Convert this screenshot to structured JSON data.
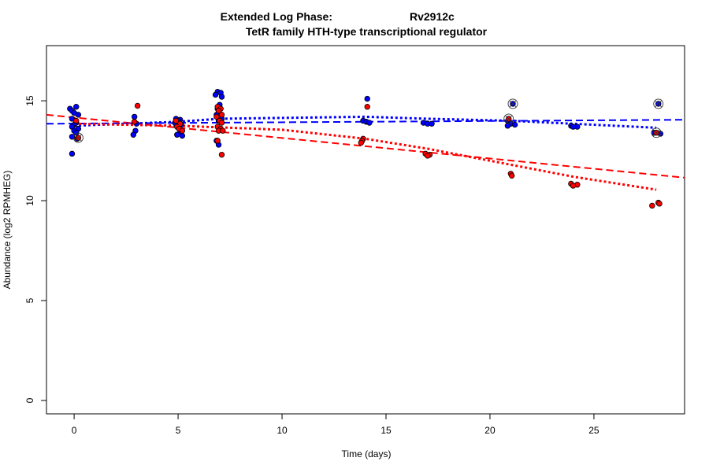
{
  "chart_data": {
    "type": "scatter",
    "title_line1_left": "Extended Log Phase:",
    "title_line1_right": "Rv2912c",
    "title_line2": "TetR family HTH-type transcriptional regulator",
    "xlabel": "Time  (days)",
    "ylabel": "Abundance  (log2 RPMHEG)",
    "xlim": [
      -1.33,
      29.36
    ],
    "ylim": [
      -0.67,
      17.76
    ],
    "xticks": [
      0,
      5,
      10,
      15,
      20,
      25
    ],
    "yticks": [
      0,
      5,
      10,
      15
    ],
    "grid": false,
    "colors": {
      "blue": "#0000ff",
      "red": "#ff0000"
    },
    "series": [
      {
        "color": "blue",
        "points": [
          [
            -0.2,
            14.6
          ],
          [
            -0.1,
            14.5
          ],
          [
            0.1,
            14.7
          ],
          [
            0,
            14.4
          ],
          [
            0.2,
            14.3
          ],
          [
            -0.1,
            14.1
          ],
          [
            0.1,
            13.9
          ],
          [
            0,
            13.8
          ],
          [
            -0.1,
            13.7
          ],
          [
            0.2,
            13.6
          ],
          [
            0,
            13.5
          ],
          [
            0.1,
            13.4
          ],
          [
            -0.1,
            13.2
          ],
          [
            0.15,
            13.1
          ],
          [
            -0.1,
            12.35
          ],
          [
            2.9,
            14.2
          ],
          [
            3,
            13.85
          ],
          [
            2.95,
            13.5
          ],
          [
            2.85,
            13.3
          ],
          [
            4.9,
            14.1
          ],
          [
            5.1,
            14.05
          ],
          [
            5,
            14.0
          ],
          [
            4.85,
            13.9
          ],
          [
            5.15,
            13.8
          ],
          [
            5.05,
            13.6
          ],
          [
            5.1,
            13.4
          ],
          [
            4.95,
            13.3
          ],
          [
            5.2,
            13.25
          ],
          [
            6.9,
            15.45
          ],
          [
            7.05,
            15.4
          ],
          [
            6.8,
            15.3
          ],
          [
            7.1,
            15.2
          ],
          [
            7,
            14.8
          ],
          [
            6.9,
            14.6
          ],
          [
            6.85,
            14.3
          ],
          [
            7.1,
            14.1
          ],
          [
            6.95,
            14.0
          ],
          [
            6.85,
            13.0
          ],
          [
            6.95,
            12.8
          ],
          [
            14.1,
            15.1
          ],
          [
            13.9,
            14.0
          ],
          [
            14.05,
            13.95
          ],
          [
            14.2,
            13.9
          ],
          [
            16.8,
            13.9
          ],
          [
            17,
            13.85
          ],
          [
            17.2,
            13.85
          ],
          [
            21.1,
            14.85
          ],
          [
            20.9,
            13.9
          ],
          [
            21,
            13.85
          ],
          [
            21.2,
            13.8
          ],
          [
            20.85,
            13.75
          ],
          [
            23.9,
            13.75
          ],
          [
            24.2,
            13.7
          ],
          [
            24,
            13.7
          ],
          [
            28.1,
            14.85
          ],
          [
            27.9,
            13.4
          ],
          [
            28.2,
            13.35
          ]
        ]
      },
      {
        "color": "red",
        "points": [
          [
            0.1,
            14.0
          ],
          [
            0.2,
            13.15
          ],
          [
            3.05,
            14.75
          ],
          [
            2.9,
            13.95
          ],
          [
            4.9,
            14.0
          ],
          [
            5.1,
            13.85
          ],
          [
            4.95,
            13.7
          ],
          [
            5.05,
            13.6
          ],
          [
            5.2,
            13.5
          ],
          [
            6.9,
            14.7
          ],
          [
            7.05,
            14.6
          ],
          [
            6.95,
            14.5
          ],
          [
            7.1,
            14.3
          ],
          [
            6.85,
            14.2
          ],
          [
            7,
            14.0
          ],
          [
            7.1,
            13.9
          ],
          [
            6.9,
            13.7
          ],
          [
            7.05,
            13.6
          ],
          [
            6.95,
            13.5
          ],
          [
            7.15,
            13.5
          ],
          [
            6.9,
            13.0
          ],
          [
            7.1,
            12.3
          ],
          [
            14.1,
            14.7
          ],
          [
            13.9,
            13.1
          ],
          [
            13.85,
            13.0
          ],
          [
            13.8,
            12.9
          ],
          [
            16.9,
            12.35
          ],
          [
            17.1,
            12.3
          ],
          [
            17,
            12.25
          ],
          [
            20.9,
            14.1
          ],
          [
            21,
            11.35
          ],
          [
            21.05,
            11.25
          ],
          [
            23.9,
            10.85
          ],
          [
            24.2,
            10.8
          ],
          [
            24,
            10.75
          ],
          [
            28,
            13.4
          ],
          [
            28.1,
            9.9
          ],
          [
            28.15,
            9.85
          ],
          [
            27.8,
            9.75
          ]
        ]
      }
    ],
    "circled_points": [
      [
        0.2,
        13.15
      ],
      [
        21.1,
        14.85
      ],
      [
        20.9,
        14.1
      ],
      [
        28.1,
        14.85
      ],
      [
        28,
        13.4
      ]
    ],
    "fit_lines": [
      {
        "color": "blue",
        "style": "dashed",
        "points": [
          [
            -1.33,
            13.85
          ],
          [
            29.36,
            14.05
          ]
        ]
      },
      {
        "color": "red",
        "style": "dashed",
        "points": [
          [
            -1.33,
            14.3
          ],
          [
            29.36,
            11.15
          ]
        ]
      },
      {
        "color": "blue",
        "style": "dotted",
        "points": [
          [
            0,
            13.75
          ],
          [
            5,
            13.95
          ],
          [
            7,
            14.1
          ],
          [
            14,
            14.2
          ],
          [
            17,
            14.1
          ],
          [
            21,
            14.0
          ],
          [
            24,
            13.85
          ],
          [
            28,
            13.65
          ]
        ]
      },
      {
        "color": "red",
        "style": "dotted",
        "points": [
          [
            0,
            13.85
          ],
          [
            5,
            13.75
          ],
          [
            10,
            13.55
          ],
          [
            14,
            13.1
          ],
          [
            17,
            12.6
          ],
          [
            21,
            11.8
          ],
          [
            24,
            11.2
          ],
          [
            28,
            10.55
          ]
        ]
      }
    ]
  }
}
